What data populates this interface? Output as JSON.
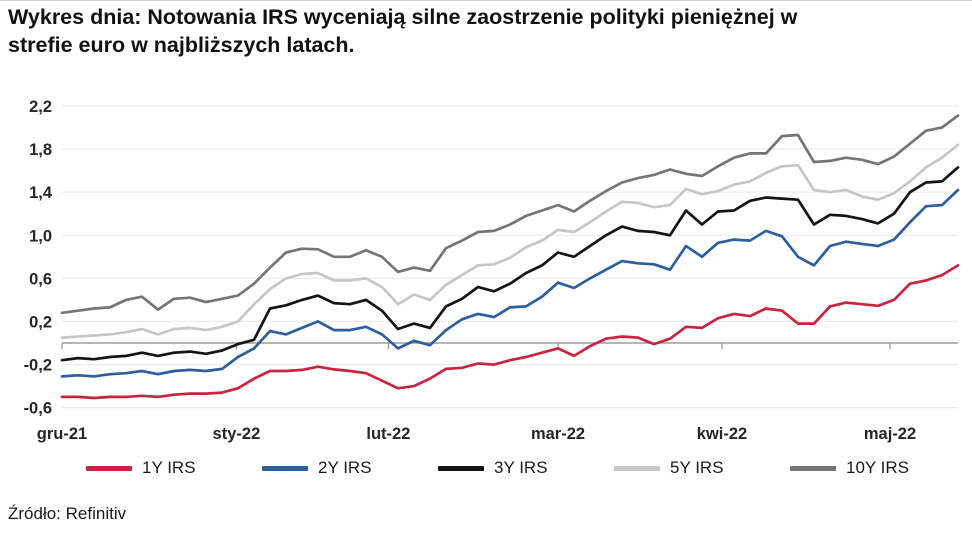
{
  "page": {
    "title_line1": "Wykres dnia: Notowania IRS wyceniają silne zaostrzenie polityki pieniężnej w",
    "title_line2": "strefie euro w najbliższych latach.",
    "source": "Źródło: Refinitiv"
  },
  "chart_data": {
    "type": "line",
    "title": "Wykres dnia: Notowania IRS wyceniają silne zaostrzenie polityki pieniężnej w strefie euro w najbliższych latach.",
    "legend_position": "bottom",
    "grid": "horizontal",
    "y_axis": {
      "range": [
        -0.6,
        2.2
      ],
      "zero_line": true,
      "ticks": [
        {
          "value": 2.2,
          "label": "2,2"
        },
        {
          "value": 1.8,
          "label": "1,8"
        },
        {
          "value": 1.4,
          "label": "1,4"
        },
        {
          "value": 1.0,
          "label": "1,0"
        },
        {
          "value": 0.6,
          "label": "0,6"
        },
        {
          "value": 0.2,
          "label": "0,2"
        },
        {
          "value": -0.2,
          "label": "-0,2"
        },
        {
          "value": -0.6,
          "label": "-0,6"
        }
      ]
    },
    "x_axis": {
      "ticks": [
        {
          "day": 0,
          "label": "gru-21"
        },
        {
          "day": 21.8,
          "label": "sty-22"
        },
        {
          "day": 40.8,
          "label": "lut-22"
        },
        {
          "day": 62,
          "label": "mar-22"
        },
        {
          "day": 82.5,
          "label": "kwi-22"
        },
        {
          "day": 103.5,
          "label": "maj-22"
        }
      ],
      "total_days": 112,
      "sample_step_days": 2
    },
    "series": [
      {
        "name": "1Y IRS",
        "color": "#c9243f",
        "values": [
          -0.5,
          -0.5,
          -0.51,
          -0.5,
          -0.5,
          -0.49,
          -0.5,
          -0.48,
          -0.47,
          -0.47,
          -0.46,
          -0.42,
          -0.33,
          -0.26,
          -0.26,
          -0.25,
          -0.22,
          -0.245,
          -0.26,
          -0.28,
          -0.35,
          -0.42,
          -0.4,
          -0.33,
          -0.24,
          -0.23,
          -0.19,
          -0.2,
          -0.16,
          -0.13,
          -0.09,
          -0.05,
          -0.12,
          -0.03,
          0.04,
          0.06,
          0.05,
          -0.01,
          0.04,
          0.15,
          0.14,
          0.23,
          0.27,
          0.25,
          0.32,
          0.3,
          0.18,
          0.18,
          0.34,
          0.375,
          0.36,
          0.345,
          0.4,
          0.55,
          0.58,
          0.63,
          0.72
        ]
      },
      {
        "name": "2Y IRS",
        "color": "#2d5f9e",
        "values": [
          -0.31,
          -0.3,
          -0.31,
          -0.29,
          -0.28,
          -0.26,
          -0.29,
          -0.26,
          -0.25,
          -0.26,
          -0.24,
          -0.13,
          -0.05,
          0.11,
          0.08,
          0.14,
          0.2,
          0.12,
          0.12,
          0.15,
          0.08,
          -0.05,
          0.02,
          -0.02,
          0.12,
          0.22,
          0.27,
          0.24,
          0.33,
          0.34,
          0.43,
          0.56,
          0.51,
          0.6,
          0.68,
          0.76,
          0.74,
          0.73,
          0.68,
          0.9,
          0.8,
          0.93,
          0.96,
          0.95,
          1.04,
          0.99,
          0.8,
          0.72,
          0.9,
          0.94,
          0.92,
          0.9,
          0.96,
          1.12,
          1.27,
          1.28,
          1.42
        ]
      },
      {
        "name": "3Y IRS",
        "color": "#141414",
        "values": [
          -0.16,
          -0.14,
          -0.15,
          -0.13,
          -0.12,
          -0.09,
          -0.12,
          -0.09,
          -0.08,
          -0.1,
          -0.07,
          -0.01,
          0.03,
          0.32,
          0.35,
          0.4,
          0.44,
          0.37,
          0.36,
          0.4,
          0.3,
          0.13,
          0.18,
          0.14,
          0.34,
          0.41,
          0.52,
          0.48,
          0.55,
          0.65,
          0.72,
          0.84,
          0.8,
          0.9,
          1.0,
          1.08,
          1.04,
          1.03,
          1.0,
          1.23,
          1.1,
          1.22,
          1.23,
          1.32,
          1.35,
          1.34,
          1.33,
          1.1,
          1.19,
          1.18,
          1.15,
          1.11,
          1.2,
          1.4,
          1.49,
          1.5,
          1.63
        ]
      },
      {
        "name": "5Y IRS",
        "color": "#c6c6c6",
        "values": [
          0.05,
          0.06,
          0.07,
          0.08,
          0.1,
          0.13,
          0.08,
          0.13,
          0.14,
          0.12,
          0.15,
          0.2,
          0.36,
          0.5,
          0.6,
          0.64,
          0.65,
          0.58,
          0.58,
          0.6,
          0.52,
          0.36,
          0.45,
          0.4,
          0.54,
          0.63,
          0.72,
          0.73,
          0.79,
          0.89,
          0.95,
          1.05,
          1.03,
          1.12,
          1.22,
          1.31,
          1.3,
          1.26,
          1.28,
          1.43,
          1.38,
          1.41,
          1.47,
          1.5,
          1.58,
          1.64,
          1.65,
          1.42,
          1.4,
          1.42,
          1.36,
          1.33,
          1.39,
          1.5,
          1.63,
          1.72,
          1.84
        ]
      },
      {
        "name": "10Y IRS",
        "color": "#757575",
        "values": [
          0.28,
          0.3,
          0.32,
          0.33,
          0.4,
          0.43,
          0.31,
          0.41,
          0.42,
          0.38,
          0.41,
          0.44,
          0.55,
          0.7,
          0.84,
          0.875,
          0.87,
          0.8,
          0.8,
          0.86,
          0.8,
          0.66,
          0.7,
          0.67,
          0.88,
          0.95,
          1.03,
          1.04,
          1.1,
          1.18,
          1.23,
          1.28,
          1.22,
          1.32,
          1.41,
          1.49,
          1.53,
          1.56,
          1.61,
          1.57,
          1.55,
          1.64,
          1.72,
          1.76,
          1.76,
          1.92,
          1.93,
          1.68,
          1.69,
          1.72,
          1.7,
          1.66,
          1.73,
          1.85,
          1.97,
          2.0,
          2.11
        ]
      }
    ],
    "colors": {
      "gridline": "#ececec",
      "zero_axis": "#9e9e9e",
      "text": "#262626"
    }
  }
}
